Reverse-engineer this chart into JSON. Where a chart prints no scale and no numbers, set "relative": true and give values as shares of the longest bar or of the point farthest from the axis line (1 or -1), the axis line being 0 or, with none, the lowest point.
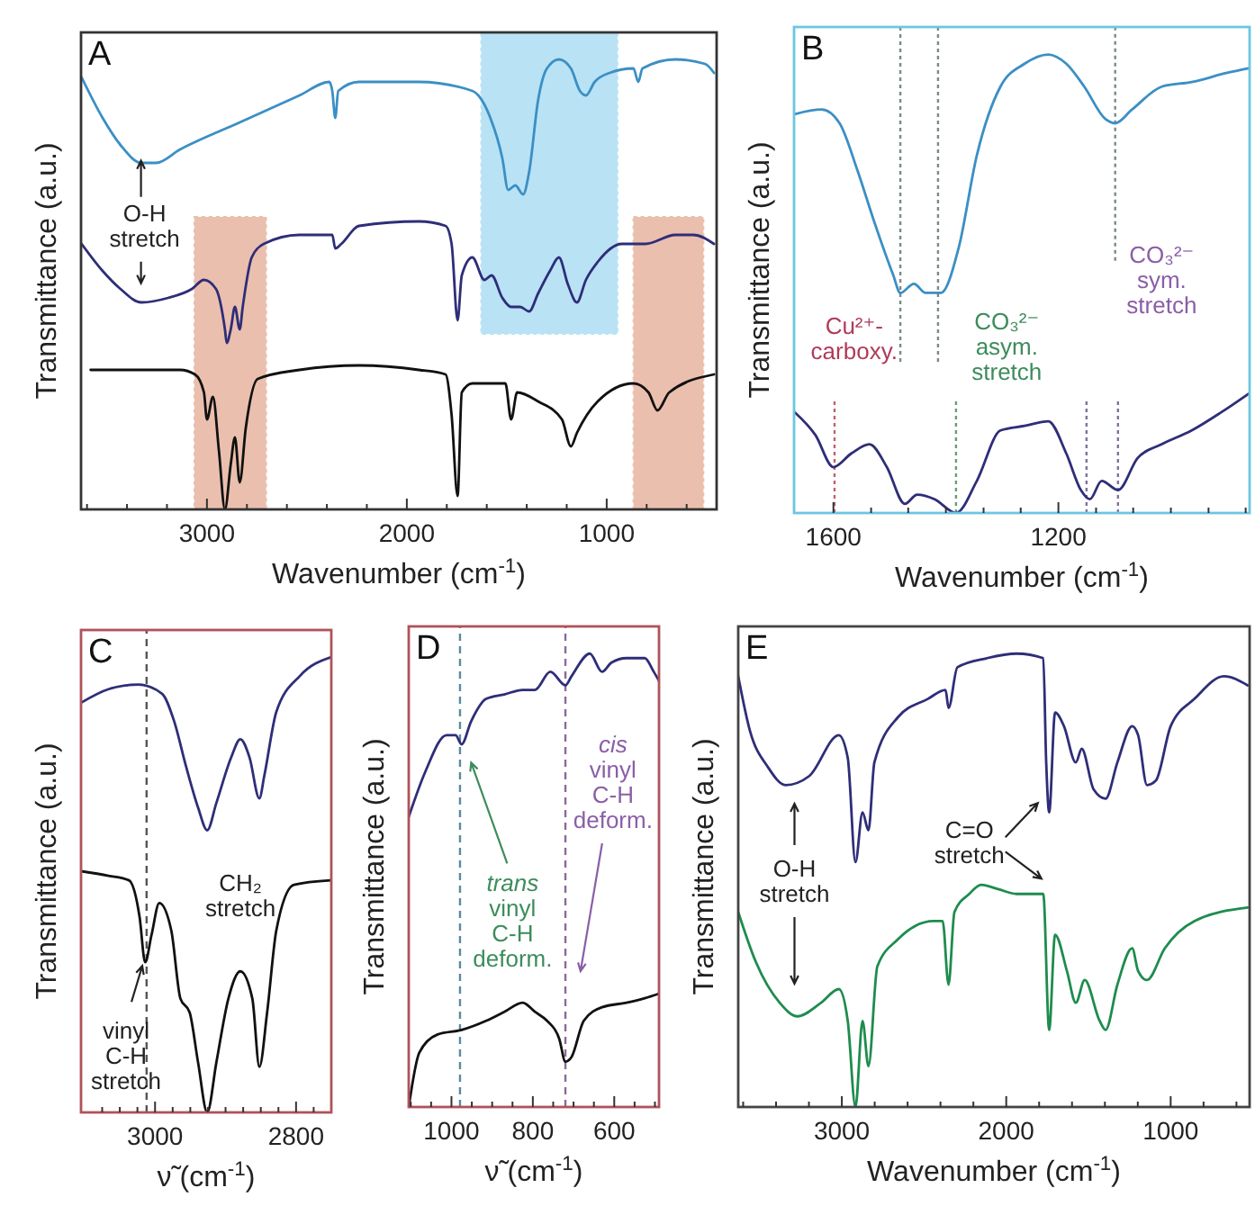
{
  "chart_data": [
    {
      "type": "line",
      "title": "A",
      "xlabel": "Wavenumber (cm$^{-1}$)",
      "ylabel": "Transmittance (a.u.)",
      "relative": true,
      "xlim": [
        3630,
        450
      ],
      "xticks": [
        {
          "value": 3600,
          "label": null
        },
        {
          "value": 3400,
          "label": null
        },
        {
          "value": 3200,
          "label": null
        },
        3000,
        {
          "value": 2800,
          "label": null
        },
        {
          "value": 2600,
          "label": null
        },
        {
          "value": 2400,
          "label": null
        },
        {
          "value": 2200,
          "label": null
        },
        2000,
        {
          "value": 1800,
          "label": null
        },
        {
          "value": 1600,
          "label": null
        },
        {
          "value": 1400,
          "label": null
        },
        {
          "value": 1200,
          "label": null
        },
        1000,
        {
          "value": 800,
          "label": null
        },
        {
          "value": 600,
          "label": null
        }
      ],
      "bands": [
        {
          "axis": "x",
          "from": 3063,
          "to": 2704,
          "color": "#ebbfae"
        },
        {
          "axis": "x",
          "from": 1628,
          "to": 946,
          "color": "#b9e2f5"
        },
        {
          "axis": "x",
          "from": 866,
          "to": 516,
          "color": "#ebbfae"
        }
      ],
      "annotations": [
        "O-H\nstretch"
      ],
      "series": [
        {
          "color": "#3b8fc4",
          "x": [
            3627,
            3522,
            3433,
            3328,
            3254,
            3134,
            2836,
            2537,
            2388,
            2373,
            2358,
            2343,
            2239,
            1940,
            1672,
            1642,
            1582,
            1522,
            1493,
            1457,
            1418,
            1388,
            1343,
            1299,
            1239,
            1179,
            1134,
            1104,
            1060,
            985,
            866,
            842,
            821,
            657,
            508,
            463
          ],
          "values": [
            0.96,
            0.87,
            0.81,
            0.77,
            0.77,
            0.8,
            0.86,
            0.92,
            0.95,
            0.93,
            0.87,
            0.93,
            0.95,
            0.95,
            0.93,
            0.92,
            0.87,
            0.78,
            0.71,
            0.72,
            0.7,
            0.75,
            0.91,
            0.98,
            1.0,
            0.98,
            0.93,
            0.92,
            0.95,
            0.97,
            0.98,
            0.95,
            0.98,
            1.0,
            0.99,
            0.97
          ]
        },
        {
          "color": "#2e2e78",
          "x": [
            3627,
            3522,
            3433,
            3328,
            3194,
            3075,
            3015,
            2955,
            2910,
            2901,
            2881,
            2860,
            2836,
            2821,
            2776,
            2716,
            2537,
            2373,
            2358,
            2328,
            2239,
            1940,
            1806,
            1776,
            1746,
            1725,
            1672,
            1612,
            1576,
            1522,
            1478,
            1433,
            1388,
            1343,
            1284,
            1239,
            1194,
            1149,
            1104,
            1045,
            925,
            806,
            657,
            567,
            463
          ],
          "values": [
            0.59,
            0.53,
            0.49,
            0.46,
            0.47,
            0.49,
            0.51,
            0.49,
            0.4,
            0.37,
            0.4,
            0.45,
            0.4,
            0.45,
            0.56,
            0.59,
            0.61,
            0.61,
            0.58,
            0.59,
            0.63,
            0.64,
            0.63,
            0.59,
            0.42,
            0.52,
            0.56,
            0.51,
            0.52,
            0.47,
            0.45,
            0.45,
            0.44,
            0.48,
            0.53,
            0.56,
            0.5,
            0.46,
            0.51,
            0.55,
            0.59,
            0.59,
            0.61,
            0.61,
            0.59
          ]
        },
        {
          "color": "#111111",
          "x": [
            3582,
            3134,
            3060,
            3015,
            3000,
            2970,
            2940,
            2910,
            2881,
            2860,
            2836,
            2806,
            2746,
            2537,
            2239,
            1940,
            1806,
            1776,
            1746,
            1725,
            1672,
            1507,
            1478,
            1448,
            1343,
            1224,
            1179,
            1149,
            1045,
            866,
            791,
            746,
            687,
            463
          ],
          "values": [
            0.31,
            0.31,
            0.3,
            0.26,
            0.2,
            0.25,
            0.13,
            0.0,
            0.1,
            0.16,
            0.06,
            0.18,
            0.29,
            0.31,
            0.32,
            0.31,
            0.3,
            0.21,
            0.03,
            0.26,
            0.28,
            0.28,
            0.2,
            0.26,
            0.24,
            0.2,
            0.14,
            0.17,
            0.24,
            0.28,
            0.26,
            0.22,
            0.26,
            0.3
          ]
        }
      ]
    },
    {
      "type": "line",
      "title": "B",
      "xlabel": "Wavenumber (cm$^{-1}$)",
      "ylabel": "Transmittance (a.u.)",
      "relative": true,
      "xlim": [
        1670,
        860
      ],
      "xticks": [
        1600,
        {
          "value": 1533,
          "label": null
        },
        {
          "value": 1467,
          "label": null
        },
        {
          "value": 1400,
          "label": null
        },
        {
          "value": 1333,
          "label": null
        },
        {
          "value": 1267,
          "label": null
        },
        1200,
        {
          "value": 1133,
          "label": null
        },
        {
          "value": 1067,
          "label": null
        },
        {
          "value": 1000,
          "label": null
        },
        {
          "value": 933,
          "label": null
        },
        {
          "value": 867,
          "label": null
        }
      ],
      "ref_lines": [
        {
          "axis": "x",
          "value": 1481,
          "color": "#7a8a86",
          "line_style": "dotted"
        },
        {
          "axis": "x",
          "value": 1414,
          "color": "#7a8a86",
          "line_style": "dotted"
        },
        {
          "axis": "x",
          "value": 1099,
          "color": "#7a8a86",
          "line_style": "dotted"
        },
        {
          "axis": "x",
          "value": 1598,
          "color": "#c06070",
          "line_style": "dotted"
        },
        {
          "axis": "x",
          "value": 1382,
          "color": "#6a9a7a",
          "line_style": "dotted"
        },
        {
          "axis": "x",
          "value": 1150,
          "color": "#8070a0",
          "line_style": "dotted"
        },
        {
          "axis": "x",
          "value": 1094,
          "color": "#8070a0",
          "line_style": "dotted"
        }
      ],
      "annotations": [
        "Cu²⁺-\ncarboxy.",
        "CO₃²⁻\nasym.\nstretch",
        "CO₃²⁻\nsym.\nstretch"
      ],
      "series": [
        {
          "color": "#3b8fc4",
          "x": [
            1669,
            1621,
            1589,
            1558,
            1526,
            1494,
            1481,
            1457,
            1436,
            1409,
            1377,
            1345,
            1303,
            1260,
            1218,
            1186,
            1154,
            1117,
            1099,
            1069,
            1016,
            963,
            900,
            862
          ],
          "values": [
            0.87,
            0.88,
            0.85,
            0.75,
            0.63,
            0.52,
            0.48,
            0.5,
            0.48,
            0.48,
            0.58,
            0.78,
            0.93,
            0.98,
            1.0,
            0.98,
            0.93,
            0.86,
            0.85,
            0.88,
            0.93,
            0.94,
            0.96,
            0.97
          ]
        },
        {
          "color": "#2e2e78",
          "x": [
            1669,
            1632,
            1600,
            1568,
            1536,
            1505,
            1473,
            1451,
            1420,
            1382,
            1345,
            1303,
            1260,
            1218,
            1186,
            1160,
            1144,
            1123,
            1094,
            1059,
            1016,
            963,
            910,
            862
          ],
          "values": [
            0.22,
            0.17,
            0.1,
            0.13,
            0.15,
            0.1,
            0.02,
            0.04,
            0.03,
            0.0,
            0.07,
            0.18,
            0.19,
            0.2,
            0.13,
            0.05,
            0.03,
            0.07,
            0.05,
            0.12,
            0.15,
            0.18,
            0.22,
            0.26
          ]
        }
      ]
    },
    {
      "type": "line",
      "title": "C",
      "xlabel": "ν̃ (cm$^{-1}$)",
      "ylabel": "Transmittance (a.u.)",
      "relative": true,
      "xlim": [
        3105,
        2750
      ],
      "xticks": [
        {
          "value": 3075,
          "label": null
        },
        {
          "value": 3050,
          "label": null
        },
        {
          "value": 3025,
          "label": null
        },
        3000,
        {
          "value": 2975,
          "label": null
        },
        {
          "value": 2950,
          "label": null
        },
        {
          "value": 2925,
          "label": null
        },
        {
          "value": 2900,
          "label": null
        },
        {
          "value": 2875,
          "label": null
        },
        {
          "value": 2850,
          "label": null
        },
        {
          "value": 2825,
          "label": null
        },
        2800,
        {
          "value": 2775,
          "label": null
        }
      ],
      "ref_lines": [
        {
          "axis": "x",
          "value": 3012,
          "color": "#555555",
          "line_style": "dashed"
        }
      ],
      "annotations": [
        "CH₂\nstretch",
        "vinyl\nC-H\nstretch"
      ],
      "series": [
        {
          "color": "#2e2e78",
          "x": [
            3105,
            3066,
            3024,
            2990,
            2973,
            2956,
            2939,
            2926,
            2913,
            2892,
            2879,
            2866,
            2852,
            2845,
            2828,
            2794,
            2751
          ],
          "values": [
            0.9,
            0.93,
            0.94,
            0.92,
            0.86,
            0.76,
            0.67,
            0.62,
            0.68,
            0.78,
            0.82,
            0.78,
            0.69,
            0.74,
            0.88,
            0.96,
            1.0
          ]
        },
        {
          "color": "#111111",
          "x": [
            3105,
            3066,
            3037,
            3022,
            3014,
            3005,
            2994,
            2977,
            2964,
            2951,
            2939,
            2926,
            2913,
            2896,
            2879,
            2862,
            2852,
            2841,
            2828,
            2803,
            2751
          ],
          "values": [
            0.53,
            0.52,
            0.51,
            0.43,
            0.33,
            0.39,
            0.46,
            0.4,
            0.25,
            0.22,
            0.11,
            0.0,
            0.11,
            0.25,
            0.31,
            0.25,
            0.1,
            0.22,
            0.4,
            0.5,
            0.51
          ]
        }
      ]
    },
    {
      "type": "line",
      "title": "D",
      "xlabel": "ν̃ (cm$^{-1}$)",
      "ylabel": "Transmittance (a.u.)",
      "relative": true,
      "xlim": [
        1105,
        490
      ],
      "xticks": [
        {
          "value": 1100,
          "label": null
        },
        {
          "value": 1050,
          "label": null
        },
        1000,
        {
          "value": 950,
          "label": null
        },
        {
          "value": 900,
          "label": null
        },
        {
          "value": 850,
          "label": null
        },
        800,
        {
          "value": 750,
          "label": null
        },
        {
          "value": 700,
          "label": null
        },
        {
          "value": 650,
          "label": null
        },
        600,
        {
          "value": 550,
          "label": null
        },
        {
          "value": 500,
          "label": null
        }
      ],
      "ref_lines": [
        {
          "axis": "x",
          "value": 979,
          "color": "#5a8aa0",
          "line_style": "dashed"
        },
        {
          "axis": "x",
          "value": 720,
          "color": "#8a6a9a",
          "line_style": "dashed"
        }
      ],
      "annotations": [
        "trans\nvinyl\nC-H\ndeform.",
        "cis\nvinyl\nC-H\ndeform."
      ],
      "series": [
        {
          "color": "#2e2e78",
          "x": [
            1105,
            1064,
            1012,
            990,
            975,
            952,
            915,
            870,
            825,
            795,
            757,
            720,
            705,
            660,
            630,
            607,
            570,
            525,
            503,
            490
          ],
          "values": [
            0.64,
            0.74,
            0.82,
            0.82,
            0.8,
            0.85,
            0.9,
            0.91,
            0.92,
            0.92,
            0.96,
            0.93,
            0.95,
            1.0,
            0.96,
            0.98,
            0.99,
            0.99,
            0.96,
            0.94
          ]
        },
        {
          "color": "#111111",
          "x": [
            1105,
            1079,
            1034,
            975,
            915,
            870,
            825,
            795,
            765,
            735,
            720,
            705,
            675,
            630,
            570,
            525,
            490
          ],
          "values": [
            0.0,
            0.12,
            0.16,
            0.17,
            0.19,
            0.21,
            0.23,
            0.21,
            0.19,
            0.15,
            0.1,
            0.11,
            0.19,
            0.22,
            0.23,
            0.24,
            0.25
          ]
        }
      ]
    },
    {
      "type": "line",
      "title": "E",
      "xlabel": "Wavenumber (cm$^{-1}$)",
      "ylabel": "Transmittance (a.u.)",
      "relative": true,
      "xlim": [
        3630,
        520
      ],
      "xticks": [
        {
          "value": 3600,
          "label": null
        },
        {
          "value": 3400,
          "label": null
        },
        {
          "value": 3200,
          "label": null
        },
        3000,
        {
          "value": 2800,
          "label": null
        },
        {
          "value": 2600,
          "label": null
        },
        {
          "value": 2400,
          "label": null
        },
        {
          "value": 2200,
          "label": null
        },
        2000,
        {
          "value": 1800,
          "label": null
        },
        {
          "value": 1600,
          "label": null
        },
        {
          "value": 1400,
          "label": null
        },
        {
          "value": 1200,
          "label": null
        },
        1000,
        {
          "value": 800,
          "label": null
        },
        {
          "value": 600,
          "label": null
        }
      ],
      "annotations": [
        "O-H\nstretch",
        "C=O\nstretch"
      ],
      "series": [
        {
          "color": "#2e2e78",
          "x": [
            3630,
            3559,
            3450,
            3342,
            3198,
            3018,
            2964,
            2917,
            2874,
            2838,
            2802,
            2658,
            2477,
            2369,
            2351,
            2297,
            2117,
            1937,
            1775,
            1757,
            1739,
            1703,
            1649,
            1577,
            1541,
            1468,
            1396,
            1324,
            1234,
            1198,
            1144,
            1090,
            1000,
            856,
            676,
            532
          ],
          "values": [
            0.95,
            0.83,
            0.75,
            0.71,
            0.73,
            0.82,
            0.77,
            0.54,
            0.65,
            0.61,
            0.76,
            0.86,
            0.9,
            0.92,
            0.88,
            0.97,
            0.99,
            1.0,
            0.99,
            0.76,
            0.65,
            0.87,
            0.84,
            0.76,
            0.79,
            0.7,
            0.68,
            0.76,
            0.84,
            0.82,
            0.71,
            0.72,
            0.84,
            0.9,
            0.95,
            0.93
          ]
        },
        {
          "color": "#1e8c4e",
          "x": [
            3630,
            3523,
            3378,
            3270,
            3126,
            3018,
            2964,
            2917,
            2874,
            2838,
            2784,
            2658,
            2441,
            2387,
            2351,
            2315,
            2225,
            2153,
            2045,
            1937,
            1775,
            1739,
            1703,
            1631,
            1577,
            1523,
            1432,
            1396,
            1324,
            1234,
            1198,
            1144,
            1036,
            856,
            532
          ],
          "values": [
            0.43,
            0.32,
            0.23,
            0.2,
            0.23,
            0.26,
            0.19,
            0.0,
            0.19,
            0.09,
            0.31,
            0.37,
            0.41,
            0.41,
            0.27,
            0.43,
            0.47,
            0.49,
            0.48,
            0.47,
            0.47,
            0.17,
            0.38,
            0.3,
            0.23,
            0.28,
            0.19,
            0.17,
            0.27,
            0.35,
            0.3,
            0.28,
            0.35,
            0.41,
            0.44
          ]
        }
      ]
    }
  ]
}
